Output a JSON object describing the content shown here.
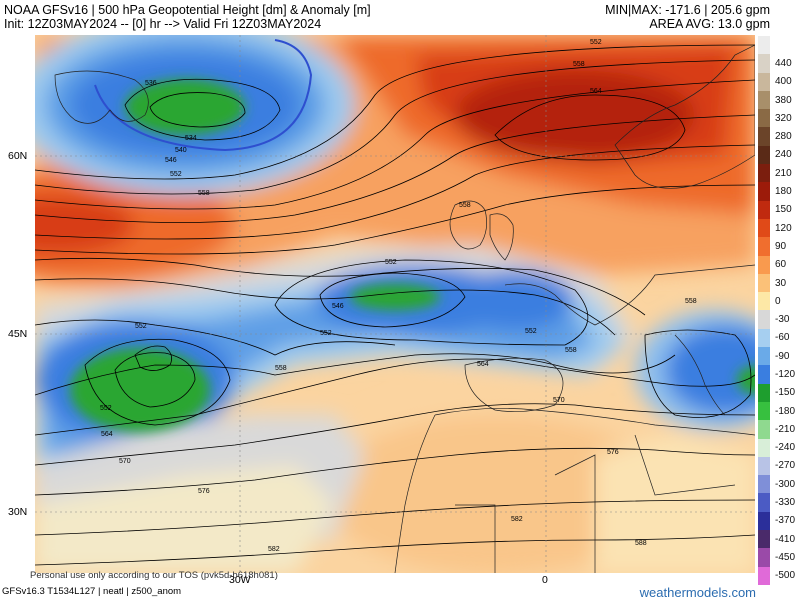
{
  "header": {
    "title_line1": "NOAA GFSv16 | 500 hPa Geopotential Height [dm] & Anomaly [m]",
    "title_line2": "Init: 12Z03MAY2024 -- [0] hr --> Valid Fri 12Z03MAY2024",
    "minmax": "MIN|MAX: -171.6 | 205.6 gpm",
    "area_avg": "AREA AVG: 13.0 gpm"
  },
  "axes": {
    "lat_labels": [
      "60N",
      "45N",
      "30N"
    ],
    "lon_labels": [
      "30W",
      "0"
    ]
  },
  "colorbar": {
    "levels": [
      {
        "label": "",
        "color": "#ececec"
      },
      {
        "label": "440",
        "color": "#d9d2c6"
      },
      {
        "label": "400",
        "color": "#c9b79c"
      },
      {
        "label": "380",
        "color": "#a88f6a"
      },
      {
        "label": "320",
        "color": "#8a6a45"
      },
      {
        "label": "280",
        "color": "#6b4429"
      },
      {
        "label": "240",
        "color": "#5a2a17"
      },
      {
        "label": "210",
        "color": "#7b1e0e"
      },
      {
        "label": "180",
        "color": "#9c1b0a"
      },
      {
        "label": "150",
        "color": "#c02a0f"
      },
      {
        "label": "120",
        "color": "#e04a18"
      },
      {
        "label": "90",
        "color": "#f06e2e"
      },
      {
        "label": "60",
        "color": "#f99a4e"
      },
      {
        "label": "30",
        "color": "#fbc178"
      },
      {
        "label": "0",
        "color": "#fde8a6"
      },
      {
        "label": "-30",
        "color": "#d8d8d8"
      },
      {
        "label": "-60",
        "color": "#a6cff0"
      },
      {
        "label": "-90",
        "color": "#6aaae8"
      },
      {
        "label": "-120",
        "color": "#3a7ee0"
      },
      {
        "label": "-150",
        "color": "#1e9e2e"
      },
      {
        "label": "-180",
        "color": "#37c03f"
      },
      {
        "label": "-210",
        "color": "#8fd98f"
      },
      {
        "label": "-240",
        "color": "#d8eed8"
      },
      {
        "label": "-270",
        "color": "#b8c3e6"
      },
      {
        "label": "-300",
        "color": "#7f8fd8"
      },
      {
        "label": "-330",
        "color": "#4b5bc4"
      },
      {
        "label": "-370",
        "color": "#2b2f9a"
      },
      {
        "label": "-410",
        "color": "#4a2a6a"
      },
      {
        "label": "-450",
        "color": "#9a4aa8"
      },
      {
        "label": "-500",
        "color": "#e06ad8"
      }
    ]
  },
  "contour_labels": [
    "552",
    "558",
    "564",
    "536",
    "534",
    "540",
    "546",
    "552",
    "558",
    "552",
    "546",
    "552",
    "558",
    "552",
    "552",
    "558",
    "564",
    "570",
    "576",
    "582",
    "588",
    "552",
    "558",
    "564",
    "570",
    "576",
    "582",
    "558"
  ],
  "footer": {
    "disclaimer": "Personal use only according to our TOS (pvk5d-b618h081)",
    "model_info": "GFSv16.3 T1534L127 | neatl | z500_anom",
    "site": "weathermodels.com"
  }
}
